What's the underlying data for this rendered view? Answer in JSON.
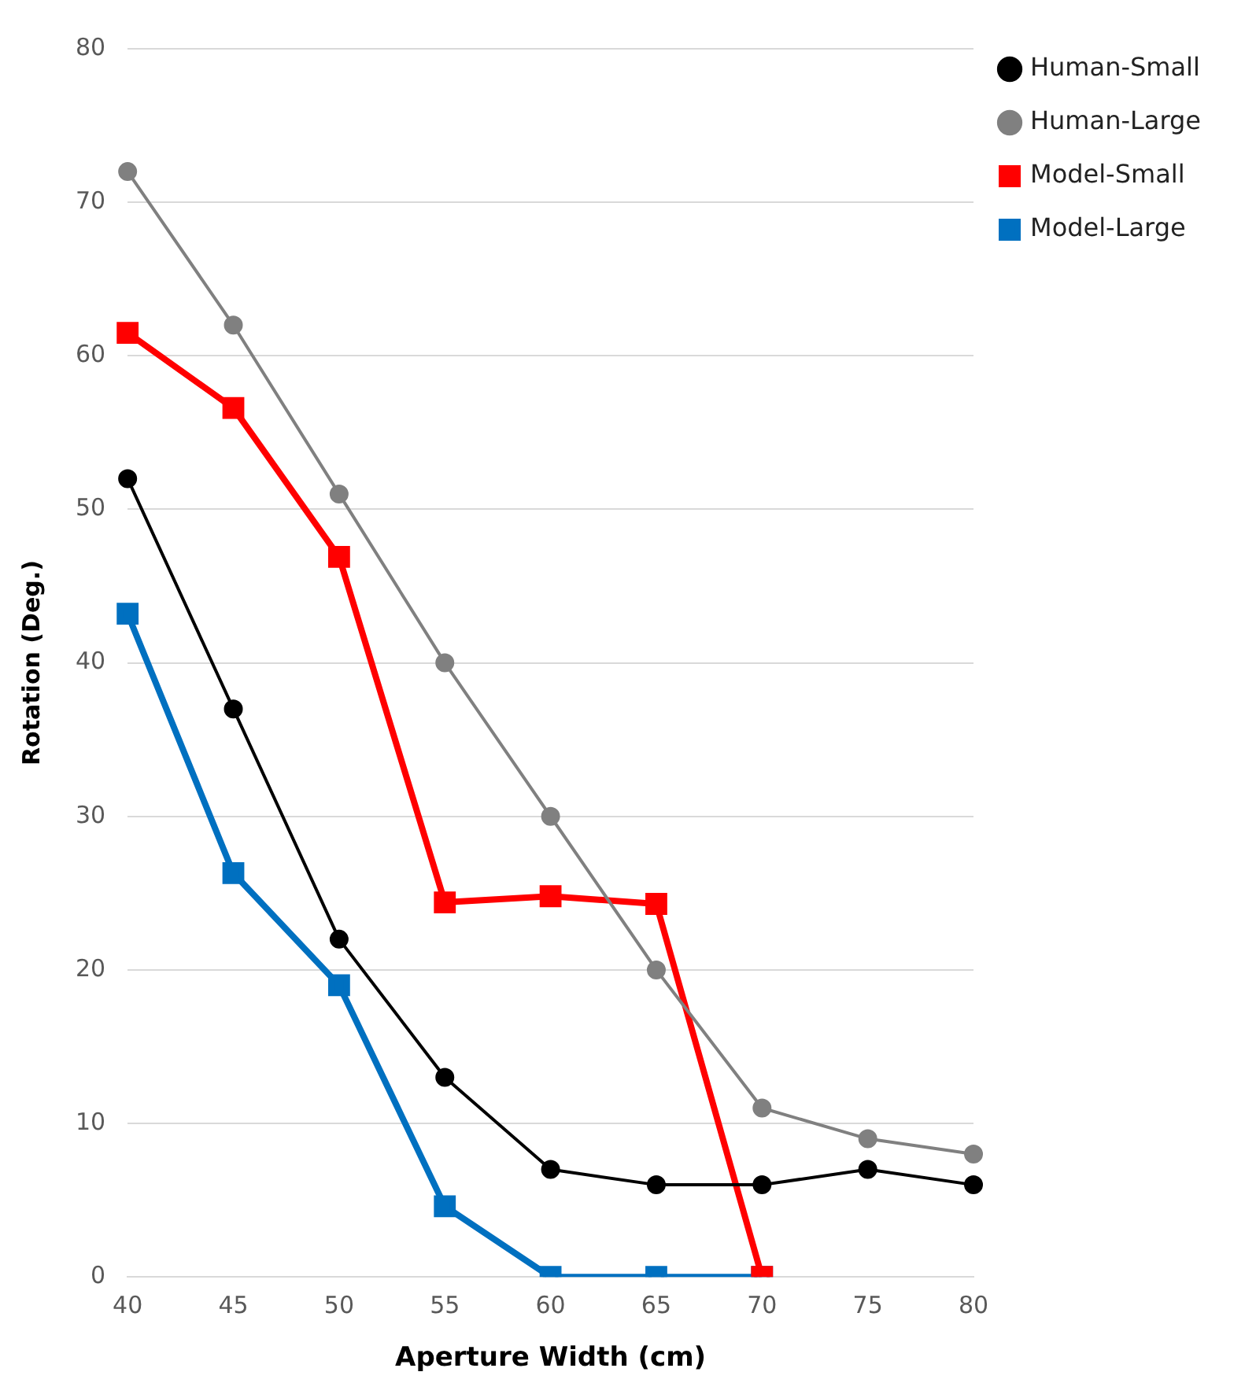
{
  "chart_data": {
    "type": "line",
    "xlabel": "Aperture Width (cm)",
    "ylabel": "Rotation (Deg.)",
    "categories": [
      "40",
      "45",
      "50",
      "55",
      "60",
      "65",
      "70",
      "75",
      "80"
    ],
    "ylim": [
      0,
      80
    ],
    "yticks": [
      0,
      10,
      20,
      30,
      40,
      50,
      60,
      70,
      80
    ],
    "grid": "y",
    "legend": "top right",
    "line_style": "solid",
    "series": [
      {
        "name": "Human-Small",
        "color": "#000000",
        "marker": "circle",
        "values": [
          52,
          37,
          22,
          13,
          7,
          6,
          6,
          7,
          6
        ]
      },
      {
        "name": "Human-Large",
        "color": "#808080",
        "marker": "circle",
        "values": [
          72,
          62,
          51,
          40,
          30,
          20,
          11,
          9,
          8
        ]
      },
      {
        "name": "Model-Small",
        "color": "#ff0000",
        "marker": "square",
        "values": [
          61.5,
          56.6,
          46.9,
          24.4,
          24.8,
          24.3,
          0,
          null,
          null
        ]
      },
      {
        "name": "Model-Large",
        "color": "#0070c0",
        "marker": "square",
        "values": [
          43.2,
          26.3,
          19,
          4.6,
          0,
          0,
          0,
          null,
          null
        ]
      }
    ]
  }
}
